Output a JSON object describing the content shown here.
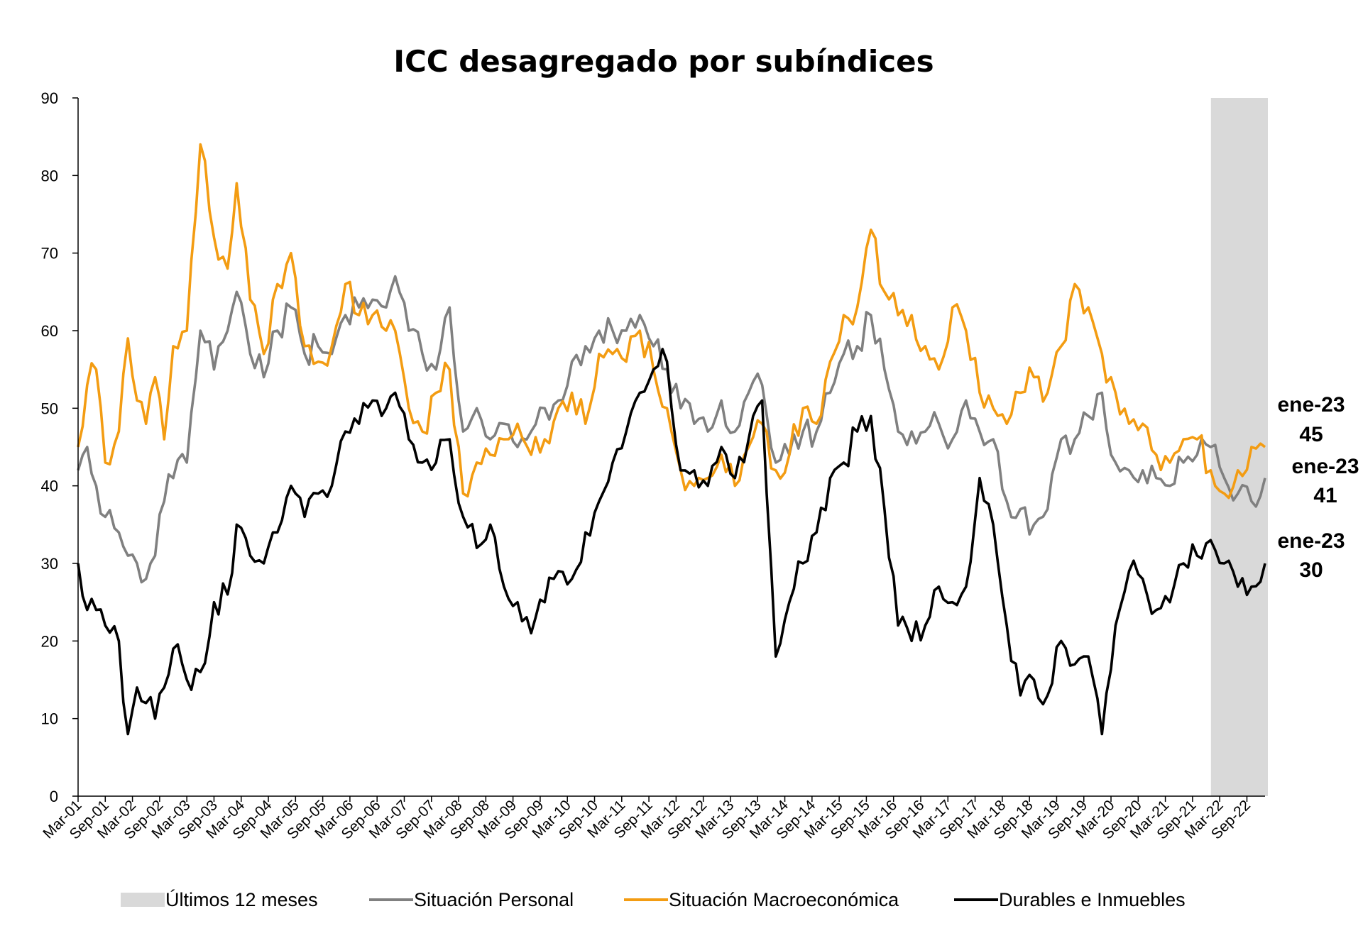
{
  "chart_data": {
    "type": "line",
    "title": "ICC desagregado por subíndices",
    "ylim": [
      0,
      90
    ],
    "yticks": [
      "0",
      "10",
      "20",
      "30",
      "40",
      "50",
      "60",
      "70",
      "80",
      "90"
    ],
    "x_start": "2001-03",
    "x_end": "2023-01",
    "x_ticks": [
      "Mar-01",
      "Sep-01",
      "Mar-02",
      "Sep-02",
      "Mar-03",
      "Sep-03",
      "Mar-04",
      "Sep-04",
      "Mar-05",
      "Sep-05",
      "Mar-06",
      "Sep-06",
      "Mar-07",
      "Sep-07",
      "Mar-08",
      "Sep-08",
      "Mar-09",
      "Sep-09",
      "Mar-10",
      "Sep-10",
      "Mar-11",
      "Sep-11",
      "Mar-12",
      "Sep-12",
      "Mar-13",
      "Sep-13",
      "Mar-14",
      "Sep-14",
      "Mar-15",
      "Sep-15",
      "Mar-16",
      "Sep-16",
      "Mar-17",
      "Sep-17",
      "Mar-18",
      "Sep-18",
      "Mar-19",
      "Sep-19",
      "Mar-20",
      "Sep-20",
      "Mar-21",
      "Sep-21",
      "Mar-22",
      "Sep-22"
    ],
    "highlight": {
      "label": "Últimos 12 meses",
      "from": "2022-02",
      "to": "2023-01",
      "color": "#d9d9d9"
    },
    "series": [
      {
        "name": "Situación Personal",
        "color": "#808080",
        "points": [
          [
            "2001-03",
            42
          ],
          [
            "2001-05",
            45
          ],
          [
            "2001-07",
            40
          ],
          [
            "2001-09",
            36
          ],
          [
            "2001-12",
            34
          ],
          [
            "2002-02",
            31
          ],
          [
            "2002-04",
            30
          ],
          [
            "2002-06",
            28
          ],
          [
            "2002-08",
            31
          ],
          [
            "2002-10",
            38
          ],
          [
            "2002-12",
            41
          ],
          [
            "2003-03",
            43
          ],
          [
            "2003-06",
            60
          ],
          [
            "2003-09",
            55
          ],
          [
            "2003-12",
            60
          ],
          [
            "2004-02",
            65
          ],
          [
            "2004-05",
            57
          ],
          [
            "2004-08",
            54
          ],
          [
            "2004-11",
            60
          ],
          [
            "2005-02",
            63
          ],
          [
            "2005-05",
            57
          ],
          [
            "2005-08",
            58
          ],
          [
            "2005-11",
            57
          ],
          [
            "2006-02",
            62
          ],
          [
            "2006-05",
            63
          ],
          [
            "2006-08",
            64
          ],
          [
            "2006-11",
            63
          ],
          [
            "2007-01",
            67
          ],
          [
            "2007-04",
            60
          ],
          [
            "2007-07",
            57
          ],
          [
            "2007-10",
            55
          ],
          [
            "2008-01",
            63
          ],
          [
            "2008-04",
            47
          ],
          [
            "2008-07",
            50
          ],
          [
            "2008-10",
            46
          ],
          [
            "2009-01",
            48
          ],
          [
            "2009-04",
            45
          ],
          [
            "2009-07",
            47
          ],
          [
            "2009-10",
            50
          ],
          [
            "2010-01",
            51
          ],
          [
            "2010-04",
            56
          ],
          [
            "2010-07",
            58
          ],
          [
            "2010-10",
            60
          ],
          [
            "2011-01",
            60
          ],
          [
            "2011-04",
            60
          ],
          [
            "2011-07",
            62
          ],
          [
            "2011-10",
            58
          ],
          [
            "2012-01",
            55
          ],
          [
            "2012-04",
            50
          ],
          [
            "2012-07",
            48
          ],
          [
            "2012-10",
            47
          ],
          [
            "2013-01",
            51
          ],
          [
            "2013-04",
            47
          ],
          [
            "2013-07",
            52
          ],
          [
            "2013-10",
            53
          ],
          [
            "2014-01",
            43
          ],
          [
            "2014-04",
            44
          ],
          [
            "2014-07",
            47
          ],
          [
            "2014-10",
            47
          ],
          [
            "2015-01",
            52
          ],
          [
            "2015-04",
            57
          ],
          [
            "2015-07",
            58
          ],
          [
            "2015-10",
            62
          ],
          [
            "2016-01",
            55
          ],
          [
            "2016-04",
            47
          ],
          [
            "2016-07",
            47
          ],
          [
            "2016-10",
            47
          ],
          [
            "2017-01",
            48
          ],
          [
            "2017-04",
            46
          ],
          [
            "2017-07",
            51
          ],
          [
            "2017-10",
            47
          ],
          [
            "2018-01",
            46
          ],
          [
            "2018-04",
            38
          ],
          [
            "2018-07",
            37
          ],
          [
            "2018-10",
            35
          ],
          [
            "2019-01",
            37
          ],
          [
            "2019-04",
            46
          ],
          [
            "2019-07",
            46
          ],
          [
            "2019-10",
            49
          ],
          [
            "2020-01",
            52
          ],
          [
            "2020-04",
            43
          ],
          [
            "2020-07",
            42
          ],
          [
            "2020-10",
            42
          ],
          [
            "2021-01",
            41
          ],
          [
            "2021-04",
            40
          ],
          [
            "2021-07",
            43
          ],
          [
            "2021-10",
            44
          ],
          [
            "2022-01",
            45
          ],
          [
            "2022-04",
            41
          ],
          [
            "2022-07",
            39
          ],
          [
            "2022-10",
            38
          ],
          [
            "2023-01",
            41
          ]
        ]
      },
      {
        "name": "Situación Macroeconómica",
        "color": "#f39c12",
        "points": [
          [
            "2001-03",
            45
          ],
          [
            "2001-05",
            53
          ],
          [
            "2001-07",
            55
          ],
          [
            "2001-09",
            43
          ],
          [
            "2001-12",
            47
          ],
          [
            "2002-02",
            59
          ],
          [
            "2002-04",
            51
          ],
          [
            "2002-06",
            48
          ],
          [
            "2002-08",
            54
          ],
          [
            "2002-10",
            46
          ],
          [
            "2002-12",
            58
          ],
          [
            "2003-03",
            60
          ],
          [
            "2003-06",
            84
          ],
          [
            "2003-09",
            72
          ],
          [
            "2003-12",
            68
          ],
          [
            "2004-02",
            79
          ],
          [
            "2004-05",
            64
          ],
          [
            "2004-08",
            57
          ],
          [
            "2004-11",
            66
          ],
          [
            "2005-02",
            70
          ],
          [
            "2005-05",
            58
          ],
          [
            "2005-08",
            56
          ],
          [
            "2005-11",
            58
          ],
          [
            "2006-02",
            66
          ],
          [
            "2006-05",
            62
          ],
          [
            "2006-08",
            62
          ],
          [
            "2006-11",
            60
          ],
          [
            "2007-01",
            60
          ],
          [
            "2007-04",
            50
          ],
          [
            "2007-07",
            47
          ],
          [
            "2007-10",
            52
          ],
          [
            "2008-01",
            55
          ],
          [
            "2008-04",
            39
          ],
          [
            "2008-07",
            43
          ],
          [
            "2008-10",
            44
          ],
          [
            "2009-01",
            46
          ],
          [
            "2009-04",
            48
          ],
          [
            "2009-07",
            44
          ],
          [
            "2009-10",
            46
          ],
          [
            "2010-01",
            50
          ],
          [
            "2010-04",
            52
          ],
          [
            "2010-07",
            48
          ],
          [
            "2010-10",
            57
          ],
          [
            "2011-01",
            57
          ],
          [
            "2011-04",
            56
          ],
          [
            "2011-07",
            60
          ],
          [
            "2011-10",
            55
          ],
          [
            "2012-01",
            50
          ],
          [
            "2012-04",
            42
          ],
          [
            "2012-07",
            40
          ],
          [
            "2012-10",
            41
          ],
          [
            "2013-01",
            44
          ],
          [
            "2013-04",
            40
          ],
          [
            "2013-07",
            45
          ],
          [
            "2013-10",
            48
          ],
          [
            "2014-01",
            42
          ],
          [
            "2014-04",
            44
          ],
          [
            "2014-07",
            50
          ],
          [
            "2014-10",
            48
          ],
          [
            "2015-01",
            56
          ],
          [
            "2015-04",
            62
          ],
          [
            "2015-07",
            63
          ],
          [
            "2015-10",
            73
          ],
          [
            "2016-01",
            65
          ],
          [
            "2016-04",
            62
          ],
          [
            "2016-07",
            62
          ],
          [
            "2016-10",
            58
          ],
          [
            "2017-01",
            55
          ],
          [
            "2017-04",
            63
          ],
          [
            "2017-07",
            60
          ],
          [
            "2017-10",
            52
          ],
          [
            "2018-01",
            50
          ],
          [
            "2018-04",
            48
          ],
          [
            "2018-07",
            52
          ],
          [
            "2018-10",
            54
          ],
          [
            "2019-01",
            52
          ],
          [
            "2019-04",
            58
          ],
          [
            "2019-07",
            66
          ],
          [
            "2019-10",
            63
          ],
          [
            "2020-01",
            57
          ],
          [
            "2020-04",
            52
          ],
          [
            "2020-07",
            48
          ],
          [
            "2020-10",
            48
          ],
          [
            "2021-01",
            44
          ],
          [
            "2021-04",
            43
          ],
          [
            "2021-07",
            46
          ],
          [
            "2021-10",
            46
          ],
          [
            "2022-01",
            42
          ],
          [
            "2022-04",
            39
          ],
          [
            "2022-07",
            42
          ],
          [
            "2022-10",
            45
          ],
          [
            "2023-01",
            45
          ]
        ]
      },
      {
        "name": "Durables e Inmuebles",
        "color": "#000000",
        "points": [
          [
            "2001-03",
            30
          ],
          [
            "2001-05",
            24
          ],
          [
            "2001-07",
            24
          ],
          [
            "2001-09",
            22
          ],
          [
            "2001-12",
            20
          ],
          [
            "2002-02",
            8
          ],
          [
            "2002-04",
            14
          ],
          [
            "2002-06",
            12
          ],
          [
            "2002-08",
            10
          ],
          [
            "2002-10",
            14
          ],
          [
            "2002-12",
            19
          ],
          [
            "2003-03",
            15
          ],
          [
            "2003-06",
            16
          ],
          [
            "2003-09",
            25
          ],
          [
            "2003-12",
            26
          ],
          [
            "2004-02",
            35
          ],
          [
            "2004-05",
            31
          ],
          [
            "2004-08",
            30
          ],
          [
            "2004-11",
            34
          ],
          [
            "2005-02",
            40
          ],
          [
            "2005-05",
            36
          ],
          [
            "2005-08",
            39
          ],
          [
            "2005-11",
            40
          ],
          [
            "2006-02",
            47
          ],
          [
            "2006-05",
            48
          ],
          [
            "2006-08",
            51
          ],
          [
            "2006-11",
            50
          ],
          [
            "2007-01",
            52
          ],
          [
            "2007-04",
            46
          ],
          [
            "2007-07",
            43
          ],
          [
            "2007-10",
            43
          ],
          [
            "2008-01",
            46
          ],
          [
            "2008-04",
            36
          ],
          [
            "2008-07",
            32
          ],
          [
            "2008-10",
            35
          ],
          [
            "2009-01",
            27
          ],
          [
            "2009-04",
            25
          ],
          [
            "2009-07",
            21
          ],
          [
            "2009-10",
            25
          ],
          [
            "2010-01",
            29
          ],
          [
            "2010-04",
            28
          ],
          [
            "2010-07",
            34
          ],
          [
            "2010-10",
            38
          ],
          [
            "2011-01",
            43
          ],
          [
            "2011-04",
            47
          ],
          [
            "2011-07",
            52
          ],
          [
            "2011-10",
            55
          ],
          [
            "2012-01",
            56
          ],
          [
            "2012-04",
            42
          ],
          [
            "2012-07",
            42
          ],
          [
            "2012-10",
            40
          ],
          [
            "2013-01",
            45
          ],
          [
            "2013-04",
            41
          ],
          [
            "2013-07",
            46
          ],
          [
            "2013-10",
            51
          ],
          [
            "2014-01",
            18
          ],
          [
            "2014-04",
            25
          ],
          [
            "2014-07",
            30
          ],
          [
            "2014-10",
            34
          ],
          [
            "2015-01",
            41
          ],
          [
            "2015-04",
            43
          ],
          [
            "2015-07",
            47
          ],
          [
            "2015-10",
            49
          ],
          [
            "2016-01",
            37
          ],
          [
            "2016-04",
            22
          ],
          [
            "2016-07",
            20
          ],
          [
            "2016-10",
            22
          ],
          [
            "2017-01",
            27
          ],
          [
            "2017-04",
            25
          ],
          [
            "2017-07",
            27
          ],
          [
            "2017-10",
            41
          ],
          [
            "2018-01",
            35
          ],
          [
            "2018-04",
            22
          ],
          [
            "2018-07",
            13
          ],
          [
            "2018-10",
            15
          ],
          [
            "2019-01",
            13
          ],
          [
            "2019-04",
            20
          ],
          [
            "2019-07",
            17
          ],
          [
            "2019-10",
            18
          ],
          [
            "2020-01",
            8
          ],
          [
            "2020-04",
            22
          ],
          [
            "2020-07",
            29
          ],
          [
            "2020-10",
            28
          ],
          [
            "2021-01",
            24
          ],
          [
            "2021-04",
            25
          ],
          [
            "2021-07",
            30
          ],
          [
            "2021-10",
            31
          ],
          [
            "2022-01",
            33
          ],
          [
            "2022-04",
            30
          ],
          [
            "2022-07",
            27
          ],
          [
            "2022-10",
            27
          ],
          [
            "2023-01",
            30
          ]
        ]
      }
    ],
    "end_labels": [
      {
        "series": "Situación Macroeconómica",
        "period": "ene-23",
        "value": "45"
      },
      {
        "series": "Situación Personal",
        "period": "ene-23",
        "value": "41"
      },
      {
        "series": "Durables e Inmuebles",
        "period": "ene-23",
        "value": "30"
      }
    ],
    "legend_position": "bottom"
  }
}
